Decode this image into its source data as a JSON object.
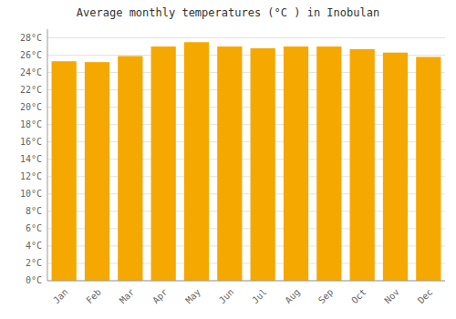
{
  "chart_data": {
    "type": "bar",
    "title": "Average monthly temperatures (°C ) in Inobulan",
    "categories": [
      "Jan",
      "Feb",
      "Mar",
      "Apr",
      "May",
      "Jun",
      "Jul",
      "Aug",
      "Sep",
      "Oct",
      "Nov",
      "Dec"
    ],
    "values": [
      25.3,
      25.2,
      25.9,
      27.0,
      27.5,
      27.0,
      26.8,
      27.0,
      27.0,
      26.7,
      26.3,
      25.8
    ],
    "color": "#F5A800",
    "ylim": [
      0,
      29
    ],
    "yticks": [
      {
        "value": 0,
        "label": "0°C"
      },
      {
        "value": 2,
        "label": "2°C"
      },
      {
        "value": 4,
        "label": "4°C"
      },
      {
        "value": 6,
        "label": "6°C"
      },
      {
        "value": 8,
        "label": "8°C"
      },
      {
        "value": 10,
        "label": "10°C"
      },
      {
        "value": 12,
        "label": "12°C"
      },
      {
        "value": 14,
        "label": "14°C"
      },
      {
        "value": 16,
        "label": "16°C"
      },
      {
        "value": 18,
        "label": "18°C"
      },
      {
        "value": 20,
        "label": "20°C"
      },
      {
        "value": 22,
        "label": "22°C"
      },
      {
        "value": 24,
        "label": "24°C"
      },
      {
        "value": 26,
        "label": "26°C"
      },
      {
        "value": 28,
        "label": "28°C"
      }
    ],
    "grid": true
  }
}
